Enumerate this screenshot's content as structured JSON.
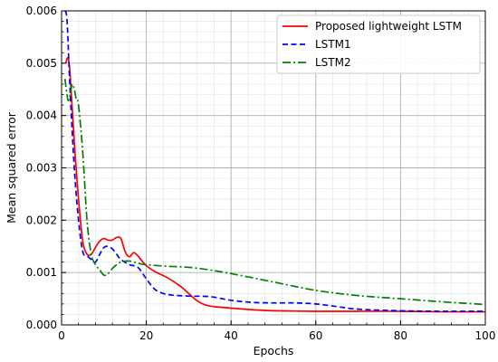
{
  "chart_data": {
    "type": "line",
    "xlabel": "Epochs",
    "ylabel": "Mean squared error",
    "xlim": [
      0,
      100
    ],
    "ylim": [
      0,
      0.006
    ],
    "xticks": [
      0,
      20,
      40,
      60,
      80,
      100
    ],
    "xtick_labels": [
      "0",
      "20",
      "40",
      "60",
      "80",
      "100"
    ],
    "yticks": [
      0,
      0.001,
      0.002,
      0.003,
      0.004,
      0.005,
      0.006
    ],
    "ytick_labels": [
      "0.000",
      "0.001",
      "0.002",
      "0.003",
      "0.004",
      "0.005",
      "0.006"
    ],
    "grid": true,
    "minor_grid": true,
    "legend_position": "top-right",
    "series": [
      {
        "name": "Proposed lightweight LSTM",
        "color": "#ff0000",
        "style": "solid",
        "x": [
          1,
          1.5,
          2,
          3,
          4,
          5,
          6,
          7,
          8,
          9,
          10,
          11,
          12,
          13,
          14,
          15,
          16,
          17,
          18,
          19,
          20,
          22,
          25,
          28,
          30,
          32,
          34,
          36,
          40,
          45,
          50,
          60,
          70,
          80,
          90,
          100
        ],
        "y": [
          0.005,
          0.0051,
          0.0048,
          0.0035,
          0.0024,
          0.0016,
          0.00135,
          0.00135,
          0.00148,
          0.0016,
          0.00165,
          0.00162,
          0.00162,
          0.00167,
          0.00165,
          0.0014,
          0.0013,
          0.00138,
          0.00132,
          0.00122,
          0.00113,
          0.00102,
          0.0009,
          0.00074,
          0.0006,
          0.00046,
          0.00038,
          0.00035,
          0.00032,
          0.00029,
          0.00027,
          0.00026,
          0.00026,
          0.00026,
          0.00025,
          0.00025
        ]
      },
      {
        "name": "LSTM1",
        "color": "#0000ff",
        "style": "dashed",
        "x": [
          0.8,
          1.3,
          2,
          3,
          4,
          5,
          6,
          7,
          8,
          9,
          10,
          11,
          12,
          13,
          14,
          16,
          18,
          20,
          22,
          24,
          26,
          30,
          35,
          40,
          45,
          50,
          55,
          60,
          65,
          70,
          80,
          90,
          100
        ],
        "y": [
          0.006,
          0.0058,
          0.0045,
          0.003,
          0.002,
          0.0014,
          0.00132,
          0.00125,
          0.0012,
          0.00135,
          0.00148,
          0.0015,
          0.00145,
          0.00135,
          0.00125,
          0.00115,
          0.0011,
          0.00088,
          0.00068,
          0.0006,
          0.00057,
          0.00055,
          0.00054,
          0.00047,
          0.00043,
          0.00042,
          0.00042,
          0.0004,
          0.00035,
          0.0003,
          0.00027,
          0.00026,
          0.00026
        ]
      },
      {
        "name": "LSTM2",
        "color": "#008000",
        "style": "dashdot",
        "x": [
          0.8,
          1.5,
          2,
          2.5,
          3,
          3.5,
          4,
          5,
          6,
          7,
          8,
          9,
          10,
          11,
          12,
          13,
          14,
          16,
          18,
          20,
          25,
          30,
          35,
          40,
          50,
          60,
          70,
          80,
          90,
          100
        ],
        "y": [
          0.0047,
          0.0043,
          0.0044,
          0.0046,
          0.0045,
          0.0043,
          0.0042,
          0.0033,
          0.002,
          0.00135,
          0.00115,
          0.00105,
          0.00095,
          0.00098,
          0.00108,
          0.00115,
          0.0012,
          0.00122,
          0.00118,
          0.00115,
          0.00112,
          0.0011,
          0.00105,
          0.00098,
          0.00082,
          0.00066,
          0.00056,
          0.0005,
          0.00044,
          0.00039
        ]
      }
    ]
  }
}
